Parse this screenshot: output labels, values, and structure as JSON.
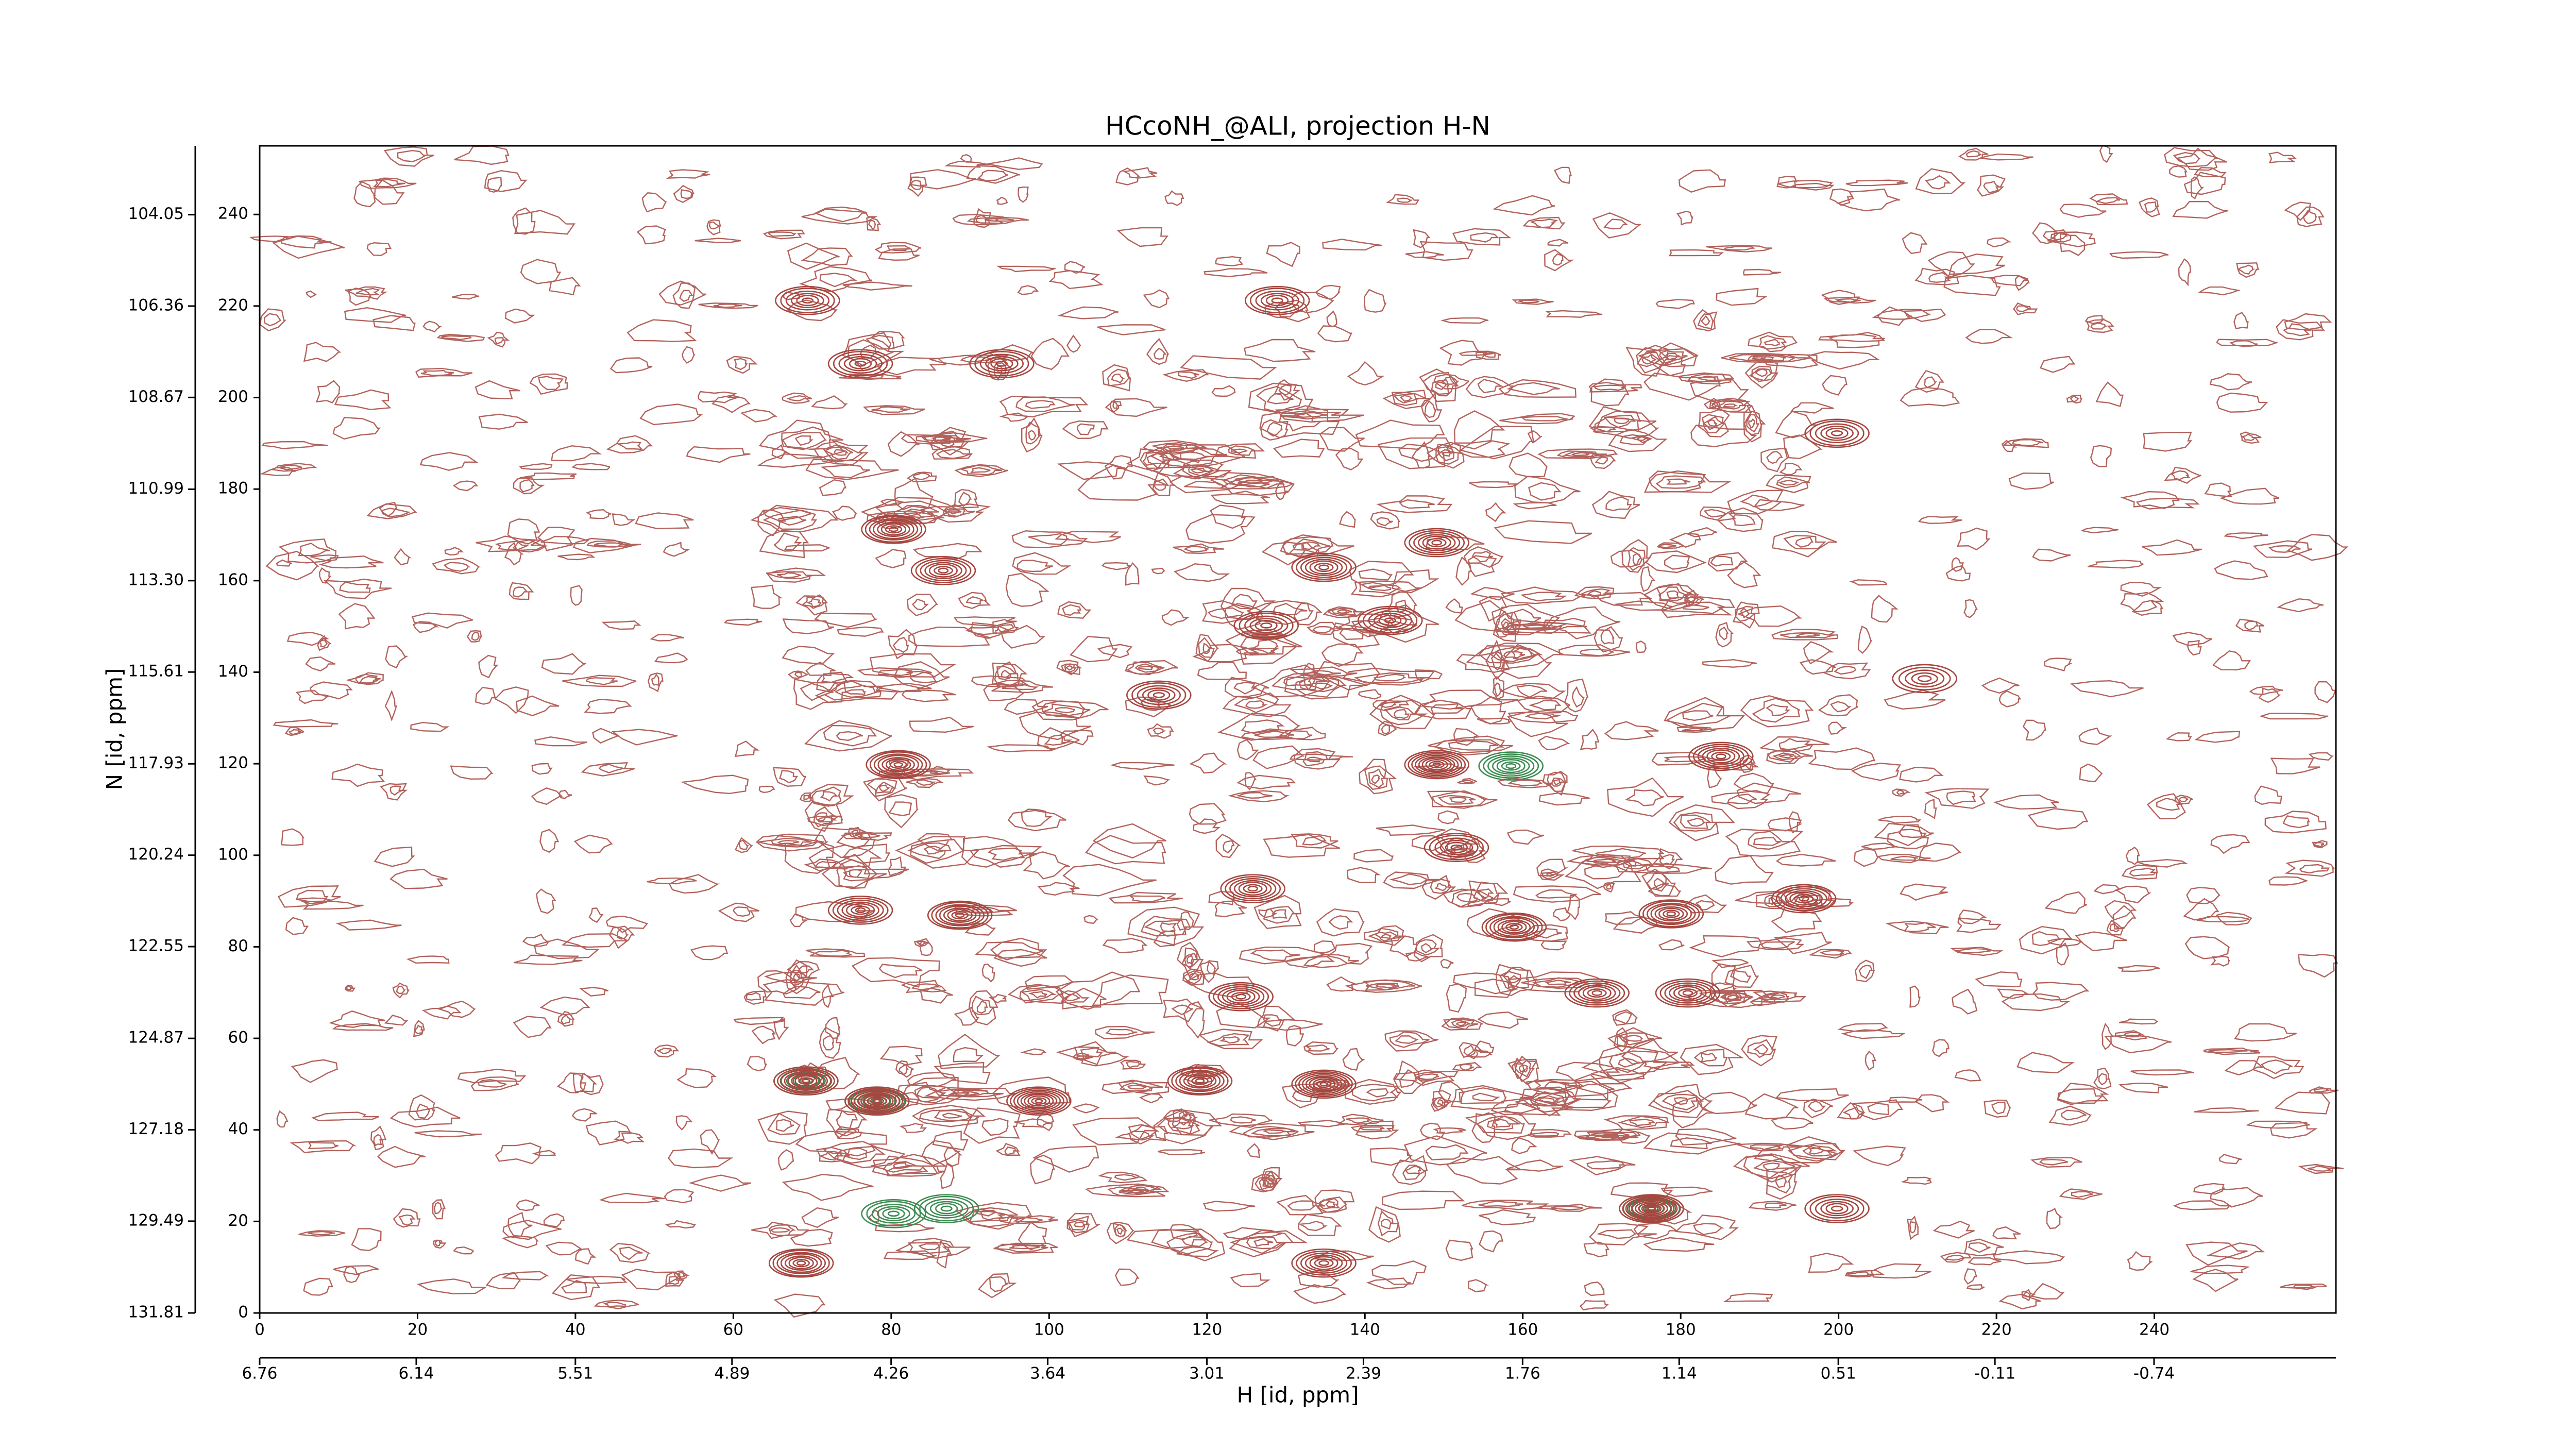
{
  "chart_data": {
    "type": "contour",
    "title": "HCcoNH_@ALI, projection H-N",
    "x_label": "H [id, ppm]",
    "y_label": "N [id, ppm]",
    "xlim": [
      0,
      263
    ],
    "ylim": [
      0,
      255
    ],
    "xticks": [
      0,
      20,
      40,
      60,
      80,
      100,
      120,
      140,
      160,
      180,
      200,
      220,
      240
    ],
    "yticks": [
      0,
      20,
      40,
      60,
      80,
      100,
      120,
      140,
      160,
      180,
      200,
      220,
      240
    ],
    "x2lim": [
      6.76,
      -1.46
    ],
    "x2ticks": [
      6.76,
      6.14,
      5.51,
      4.89,
      4.26,
      3.64,
      3.01,
      2.39,
      1.76,
      1.14,
      0.51,
      -0.11,
      -0.74
    ],
    "y2lim": [
      131.81,
      102.31
    ],
    "y2ticks": [
      131.81,
      129.49,
      127.18,
      124.87,
      122.55,
      120.24,
      117.93,
      115.61,
      {
        "value": 113.3,
        "label": "113.30"
      },
      110.99,
      108.67,
      106.36,
      104.05
    ],
    "series": [
      {
        "color": "#3d8c52",
        "x": [
          158.5,
          87,
          80.3,
          78.2,
          69.2,
          176.3
        ],
        "y": [
          119.5,
          22.8,
          21.7,
          46.3,
          50.7,
          22.8
        ],
        "levels": [
          7,
          6,
          6,
          7,
          5,
          8
        ]
      },
      {
        "color": "#a6463f",
        "x": [
          69.2,
          78.2,
          98.7,
          68.6,
          134.8,
          119.1,
          134.8,
          176.3,
          199.8,
          158.9,
          178.8,
          195.6,
          149.1,
          80.9,
          185.1,
          124.3,
          88.7,
          151.6,
          69.4,
          128.9,
          199.8,
          210.9,
          143.2,
          127.5,
          80.3,
          86.6,
          149.1,
          134.8,
          76.1,
          94.0,
          113.9,
          169.4,
          180.9,
          76.1,
          125.8
        ],
        "y": [
          50.7,
          46.3,
          46.3,
          10.9,
          10.9,
          50.7,
          50.0,
          22.8,
          22.8,
          84.3,
          87.2,
          90.5,
          119.8,
          119.8,
          121.6,
          69.1,
          86.9,
          101.7,
          221.2,
          221.2,
          192.2,
          138.6,
          151.3,
          150.2,
          171.2,
          162.2,
          168.3,
          162.9,
          207.4,
          207.4,
          135.0,
          69.9,
          69.9,
          88.0,
          92.7
        ],
        "levels": [
          9,
          10,
          9,
          8,
          7,
          8,
          9,
          10,
          6,
          8,
          8,
          7,
          9,
          8,
          7,
          7,
          8,
          6,
          6,
          6,
          6,
          5,
          6,
          6,
          8,
          7,
          7,
          7,
          6,
          6,
          6,
          7,
          7,
          7,
          7
        ]
      }
    ]
  }
}
